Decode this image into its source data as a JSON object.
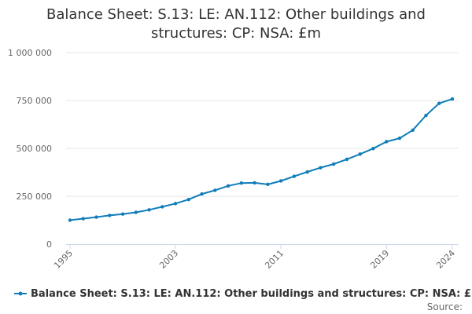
{
  "title_line1": "Balance Sheet: S.13: LE: AN.112: Other buildings and",
  "title_line2": "structures: CP: NSA: £m",
  "source_label": "Source:",
  "colors": {
    "series": "#0f7dba",
    "grid": "#e6e6e6",
    "axis_text": "#666666"
  },
  "chart_data": {
    "type": "line",
    "title": "Balance Sheet: S.13: LE: AN.112: Other buildings and structures: CP: NSA: £m",
    "xlabel": "",
    "ylabel": "",
    "xlim": [
      1995,
      2024
    ],
    "ylim": [
      0,
      1000000
    ],
    "grid": true,
    "legend_position": "bottom",
    "x_tick_labels": [
      "1995",
      "2003",
      "2011",
      "2019",
      "2024"
    ],
    "y_tick_labels": [
      "0",
      "250 000",
      "500 000",
      "750 000",
      "1 000 000"
    ],
    "y_ticks": [
      0,
      250000,
      500000,
      750000,
      1000000
    ],
    "x_ticks": [
      1995,
      2003,
      2011,
      2019,
      2024
    ],
    "series": [
      {
        "name": "Balance Sheet: S.13: LE: AN.112: Other buildings and structures: CP: NSA: £m",
        "x": [
          1995,
          1996,
          1997,
          1998,
          1999,
          2000,
          2001,
          2002,
          2003,
          2004,
          2005,
          2006,
          2007,
          2008,
          2009,
          2010,
          2011,
          2012,
          2013,
          2014,
          2015,
          2016,
          2017,
          2018,
          2019,
          2020,
          2021,
          2022,
          2023,
          2024
        ],
        "values": [
          125000,
          133000,
          141000,
          150000,
          157000,
          166000,
          179000,
          195000,
          212000,
          233000,
          262000,
          281000,
          304000,
          319000,
          320000,
          312000,
          330000,
          354000,
          377000,
          399000,
          418000,
          443000,
          470000,
          499000,
          535000,
          553000,
          595000,
          672000,
          735000,
          758000
        ]
      }
    ]
  }
}
